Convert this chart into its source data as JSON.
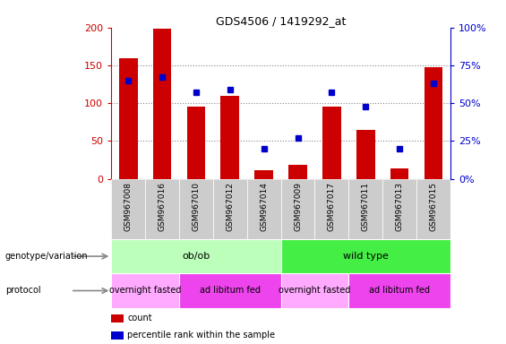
{
  "title": "GDS4506 / 1419292_at",
  "samples": [
    "GSM967008",
    "GSM967016",
    "GSM967010",
    "GSM967012",
    "GSM967014",
    "GSM967009",
    "GSM967017",
    "GSM967011",
    "GSM967013",
    "GSM967015"
  ],
  "counts": [
    160,
    198,
    95,
    110,
    12,
    18,
    95,
    65,
    14,
    147
  ],
  "percentiles": [
    65,
    67,
    57,
    59,
    20,
    27,
    57,
    48,
    20,
    63
  ],
  "ylim_left": [
    0,
    200
  ],
  "ylim_right": [
    0,
    100
  ],
  "yticks_left": [
    0,
    50,
    100,
    150,
    200
  ],
  "yticks_right": [
    0,
    25,
    50,
    75,
    100
  ],
  "yticklabels_right": [
    "0%",
    "25%",
    "50%",
    "75%",
    "100%"
  ],
  "bar_color": "#cc0000",
  "dot_color": "#0000cc",
  "grid_color": "#888888",
  "bg_color": "#ffffff",
  "xtick_bg": "#cccccc",
  "genotype_groups": [
    {
      "label": "ob/ob",
      "start": 0,
      "end": 5,
      "color": "#bbffbb"
    },
    {
      "label": "wild type",
      "start": 5,
      "end": 10,
      "color": "#44ee44"
    }
  ],
  "protocol_groups": [
    {
      "label": "overnight fasted",
      "start": 0,
      "end": 2,
      "color": "#ffaaff"
    },
    {
      "label": "ad libitum fed",
      "start": 2,
      "end": 5,
      "color": "#ee44ee"
    },
    {
      "label": "overnight fasted",
      "start": 5,
      "end": 7,
      "color": "#ffaaff"
    },
    {
      "label": "ad libitum fed",
      "start": 7,
      "end": 10,
      "color": "#ee44ee"
    }
  ],
  "legend_items": [
    {
      "label": "count",
      "color": "#cc0000"
    },
    {
      "label": "percentile rank within the sample",
      "color": "#0000cc"
    }
  ],
  "left_labels": [
    {
      "text": "genotype/variation",
      "row": "geno"
    },
    {
      "text": "protocol",
      "row": "prot"
    }
  ]
}
